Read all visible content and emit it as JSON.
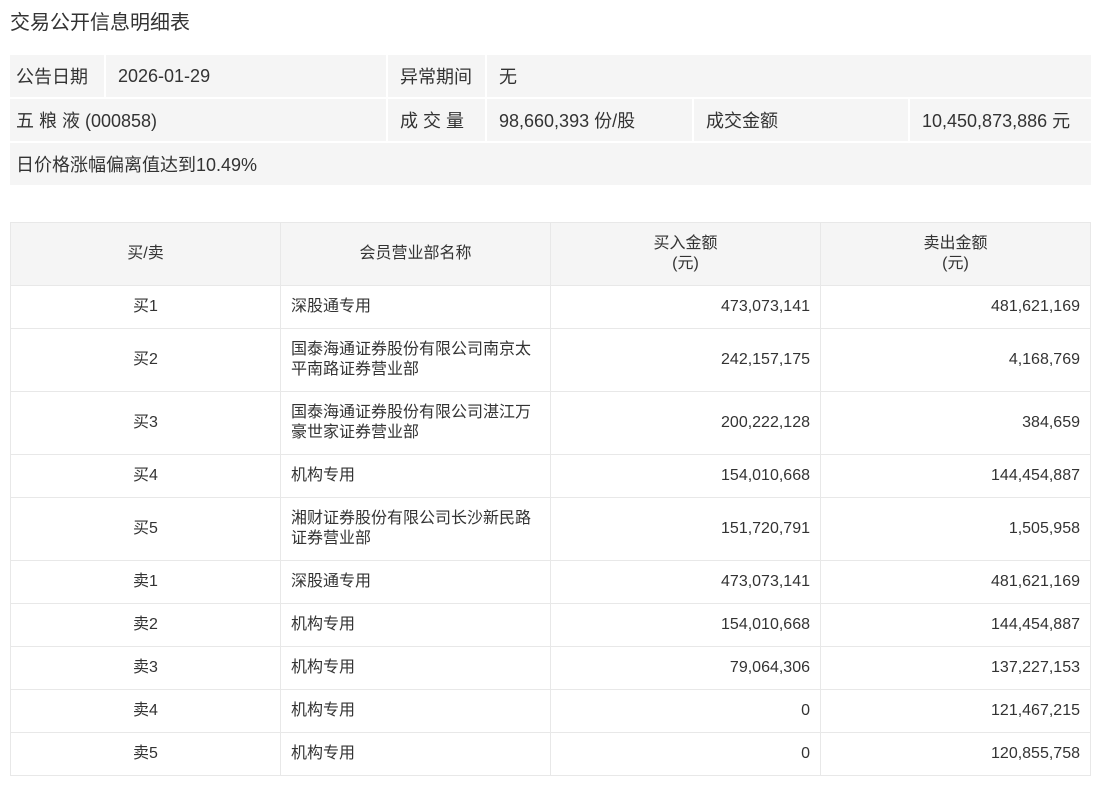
{
  "page": {
    "title": "交易公开信息明细表"
  },
  "summary": {
    "announce_date_label": "公告日期",
    "announce_date_value": "2026-01-29",
    "abnormal_period_label": "异常期间",
    "abnormal_period_value": "无",
    "stock_name": "五 粮 液 (000858)",
    "volume_label": "成 交 量",
    "volume_value": "98,660,393 份/股",
    "turnover_label": "成交金额",
    "turnover_value": "10,450,873,886 元",
    "deviation_note": "日价格涨幅偏离值达到10.49%"
  },
  "table": {
    "columns": [
      {
        "label": "买/卖",
        "unit": ""
      },
      {
        "label": "会员营业部名称",
        "unit": ""
      },
      {
        "label": "买入金额",
        "unit": "(元)"
      },
      {
        "label": "卖出金额",
        "unit": "(元)"
      }
    ],
    "rows": [
      {
        "side": "买1",
        "name": "深股通专用",
        "buy": "473,073,141",
        "sell": "481,621,169"
      },
      {
        "side": "买2",
        "name": "国泰海通证券股份有限公司南京太平南路证券营业部",
        "buy": "242,157,175",
        "sell": "4,168,769"
      },
      {
        "side": "买3",
        "name": "国泰海通证券股份有限公司湛江万豪世家证券营业部",
        "buy": "200,222,128",
        "sell": "384,659"
      },
      {
        "side": "买4",
        "name": "机构专用",
        "buy": "154,010,668",
        "sell": "144,454,887"
      },
      {
        "side": "买5",
        "name": "湘财证券股份有限公司长沙新民路证券营业部",
        "buy": "151,720,791",
        "sell": "1,505,958"
      },
      {
        "side": "卖1",
        "name": "深股通专用",
        "buy": "473,073,141",
        "sell": "481,621,169"
      },
      {
        "side": "卖2",
        "name": "机构专用",
        "buy": "154,010,668",
        "sell": "144,454,887"
      },
      {
        "side": "卖3",
        "name": "机构专用",
        "buy": "79,064,306",
        "sell": "137,227,153"
      },
      {
        "side": "卖4",
        "name": "机构专用",
        "buy": "0",
        "sell": "121,467,215"
      },
      {
        "side": "卖5",
        "name": "机构专用",
        "buy": "0",
        "sell": "120,855,758"
      }
    ]
  },
  "colors": {
    "panel_bg": "#f5f5f5",
    "border": "#e8e8e8",
    "text": "#333333",
    "page_bg": "#ffffff"
  }
}
